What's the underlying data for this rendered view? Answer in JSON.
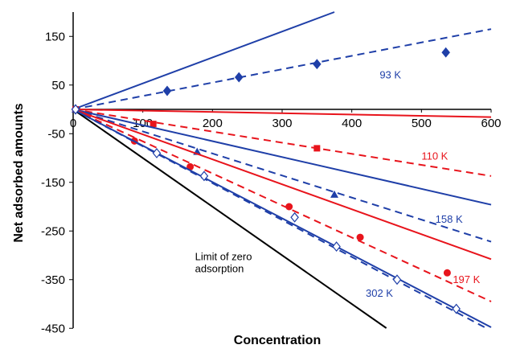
{
  "chart_data": {
    "type": "scatter",
    "title": "",
    "xlabel": "Concentration",
    "ylabel": "Net adsorbed amounts",
    "xlim": [
      0,
      600
    ],
    "ylim": [
      -450,
      200
    ],
    "x_ticks": [
      0,
      100,
      200,
      300,
      400,
      500,
      600
    ],
    "y_ticks": [
      150,
      50,
      -50,
      -150,
      -250,
      -350,
      -450
    ],
    "grid": false,
    "colors": {
      "blue": "#1f3fa8",
      "red": "#e8141c",
      "black": "#000000"
    },
    "series": [
      {
        "name": "93 K",
        "color": "#1f3fa8",
        "marker": "diamond-filled",
        "points": [
          [
            135,
            38
          ],
          [
            238,
            66
          ],
          [
            350,
            93
          ],
          [
            535,
            117
          ]
        ],
        "fit": [
          [
            0,
            0
          ],
          [
            600,
            165
          ]
        ],
        "ideal": [
          [
            0,
            0
          ],
          [
            375,
            200
          ]
        ]
      },
      {
        "name": "110 K",
        "color": "#e8141c",
        "marker": "square-filled",
        "points": [
          [
            115,
            -30
          ],
          [
            350,
            -80
          ]
        ],
        "fit": [
          [
            0,
            0
          ],
          [
            600,
            -137
          ]
        ],
        "ideal": [
          [
            0,
            0
          ],
          [
            600,
            -16
          ]
        ]
      },
      {
        "name": "158 K",
        "color": "#1f3fa8",
        "marker": "triangle-filled",
        "points": [
          [
            178,
            -87
          ],
          [
            375,
            -175
          ]
        ],
        "fit": [
          [
            0,
            0
          ],
          [
            600,
            -272
          ]
        ],
        "ideal": [
          [
            0,
            0
          ],
          [
            600,
            -196
          ]
        ]
      },
      {
        "name": "197 K",
        "color": "#e8141c",
        "marker": "circle-filled",
        "points": [
          [
            88,
            -65
          ],
          [
            168,
            -118
          ],
          [
            310,
            -200
          ],
          [
            412,
            -263
          ],
          [
            537,
            -336
          ]
        ],
        "fit": [
          [
            0,
            0
          ],
          [
            600,
            -395
          ]
        ],
        "ideal": [
          [
            0,
            0
          ],
          [
            600,
            -308
          ]
        ]
      },
      {
        "name": "302 K",
        "color": "#1f3fa8",
        "marker": "diamond-open",
        "points": [
          [
            120,
            -90
          ],
          [
            188,
            -137
          ],
          [
            318,
            -222
          ],
          [
            378,
            -282
          ],
          [
            465,
            -350
          ],
          [
            550,
            -410
          ]
        ],
        "fit": [
          [
            0,
            0
          ],
          [
            600,
            -455
          ]
        ],
        "ideal": [
          [
            0,
            0
          ],
          [
            600,
            -448
          ]
        ]
      }
    ],
    "limit_line": {
      "color": "#000000",
      "points": [
        [
          0,
          0
        ],
        [
          450,
          -450
        ]
      ]
    },
    "annotations": [
      {
        "text": "93 K",
        "color": "#1f3fa8",
        "x": 440,
        "y": 64
      },
      {
        "text": "110 K",
        "color": "#e8141c",
        "x": 500,
        "y": -103
      },
      {
        "text": "158 K",
        "color": "#1f3fa8",
        "x": 520,
        "y": -233
      },
      {
        "text": "197 K",
        "color": "#e8141c",
        "x": 545,
        "y": -357
      },
      {
        "text": "302 K",
        "color": "#1f3fa8",
        "x": 420,
        "y": -385
      },
      {
        "text": "Limit of zero",
        "color": "#000000",
        "x": 175,
        "y": -310
      },
      {
        "text": "adsorption",
        "color": "#000000",
        "x": 175,
        "y": -335
      }
    ]
  }
}
